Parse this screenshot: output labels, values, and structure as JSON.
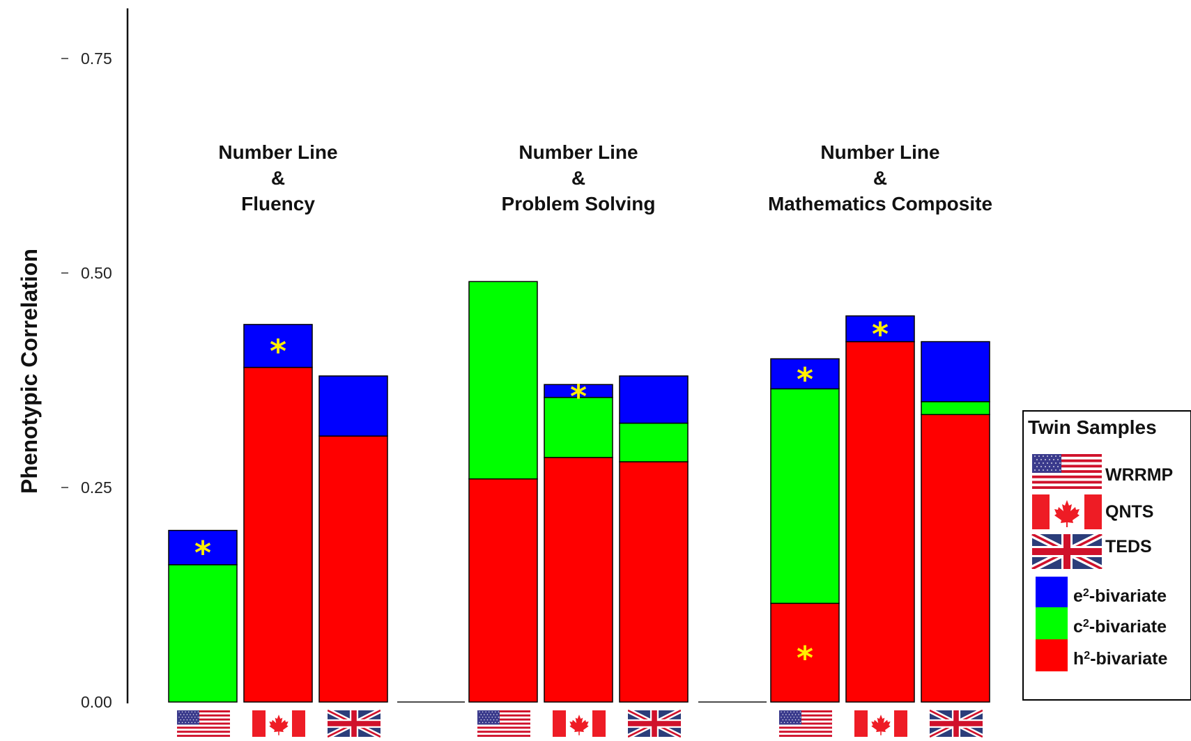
{
  "chart_data": {
    "type": "bar",
    "stacked": true,
    "ylabel": "Phenotypic Correlation",
    "xlabel": "",
    "ylim": [
      0,
      0.8
    ],
    "yticks": [
      "0.00",
      "0.25",
      "0.50",
      "0.75"
    ],
    "ytick_values": [
      0,
      0.25,
      0.5,
      0.75
    ],
    "grid": false,
    "legend_position": "right",
    "component_colors": {
      "e2": "#0000ff",
      "c2": "#00ff00",
      "h2": "#ff0000"
    },
    "star_color": "#ffee00",
    "groups": [
      {
        "title_lines": [
          "Number Line",
          "&",
          "Fluency"
        ],
        "bars": [
          {
            "sample": "WRRMP",
            "flag": "us-flag-icon",
            "h2": 0.0,
            "c2": 0.16,
            "e2": 0.04,
            "starred": [
              "e2"
            ]
          },
          {
            "sample": "QNTS",
            "flag": "canada-flag-icon",
            "h2": 0.39,
            "c2": 0.0,
            "e2": 0.05,
            "starred": [
              "e2"
            ]
          },
          {
            "sample": "TEDS",
            "flag": "uk-flag-icon",
            "h2": 0.31,
            "c2": 0.0,
            "e2": 0.07,
            "starred": []
          }
        ]
      },
      {
        "title_lines": [
          "Number Line",
          "&",
          "Problem Solving"
        ],
        "bars": [
          {
            "sample": "WRRMP",
            "flag": "us-flag-icon",
            "h2": 0.26,
            "c2": 0.23,
            "e2": 0.0,
            "starred": []
          },
          {
            "sample": "QNTS",
            "flag": "canada-flag-icon",
            "h2": 0.285,
            "c2": 0.07,
            "e2": 0.015,
            "starred": [
              "e2"
            ]
          },
          {
            "sample": "TEDS",
            "flag": "uk-flag-icon",
            "h2": 0.28,
            "c2": 0.045,
            "e2": 0.055,
            "starred": []
          }
        ]
      },
      {
        "title_lines": [
          "Number Line",
          "&",
          "Mathematics Composite"
        ],
        "bars": [
          {
            "sample": "WRRMP",
            "flag": "us-flag-icon",
            "h2": 0.115,
            "c2": 0.25,
            "e2": 0.035,
            "starred": [
              "e2",
              "h2"
            ]
          },
          {
            "sample": "QNTS",
            "flag": "canada-flag-icon",
            "h2": 0.42,
            "c2": 0.0,
            "e2": 0.03,
            "starred": [
              "e2"
            ]
          },
          {
            "sample": "TEDS",
            "flag": "uk-flag-icon",
            "h2": 0.335,
            "c2": 0.015,
            "e2": 0.07,
            "starred": []
          }
        ]
      }
    ],
    "legend": {
      "title": "Twin Samples",
      "samples": [
        {
          "flag": "us-flag-icon",
          "label": "WRRMP"
        },
        {
          "flag": "canada-flag-icon",
          "label": "QNTS"
        },
        {
          "flag": "uk-flag-icon",
          "label": "TEDS"
        }
      ],
      "components": [
        {
          "key": "e2",
          "base": "e",
          "sup": "2",
          "suffix": "-bivariate"
        },
        {
          "key": "c2",
          "base": "c",
          "sup": "2",
          "suffix": "-bivariate"
        },
        {
          "key": "h2",
          "base": "h",
          "sup": "2",
          "suffix": "-bivariate"
        }
      ]
    },
    "star_symbol": "*"
  }
}
